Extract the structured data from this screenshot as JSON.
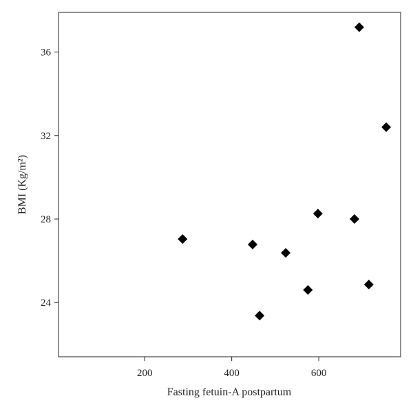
{
  "chart_data": {
    "type": "scatter",
    "x_label": "Fasting fetuin-A postpartum",
    "y_label": "BMI (Kg/m²)",
    "x": [
      287,
      448,
      464,
      524,
      575,
      598,
      682,
      693,
      715,
      755
    ],
    "y": [
      27.04,
      26.78,
      23.37,
      26.38,
      24.6,
      28.26,
      28.0,
      37.19,
      24.86,
      32.4
    ],
    "color": "#000000",
    "xlim": [
      2,
      788
    ],
    "xticks": [
      200,
      400,
      600
    ],
    "ylim": [
      21.4,
      37.9
    ],
    "yticks": [
      24,
      28,
      32,
      36
    ]
  }
}
